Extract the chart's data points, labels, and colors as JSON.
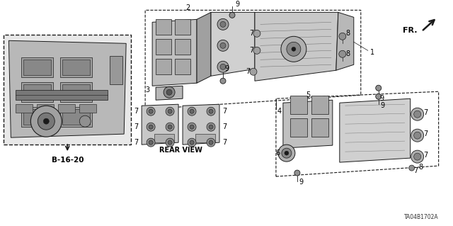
{
  "bg_color": "#ffffff",
  "diagram_id": "TA04B1702A",
  "fr_label": "FR.",
  "b_label": "B-16-20",
  "rear_view_label": "REAR VIEW",
  "line_color": "#1a1a1a",
  "gray_fill": "#c8c8c8",
  "light_gray": "#e8e8e8",
  "dark_gray": "#909090",
  "figsize": [
    6.4,
    3.19
  ],
  "dpi": 100
}
